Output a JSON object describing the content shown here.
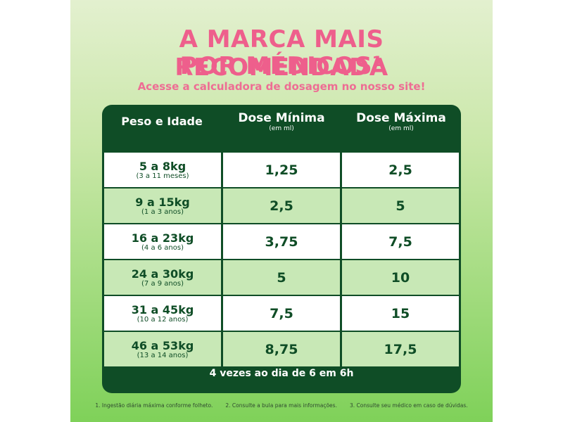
{
  "title_line1": "A MARCA MAIS RECOMENDADA",
  "title_line2": "POR MÉDICOS¹",
  "subtitle": "Acesse a calculadora de dosagem no nosso site!",
  "table": {
    "header": {
      "age": "Peso e Idade",
      "min": "Dose Mínima",
      "max": "Dose Máxima",
      "unit": "(em ml)"
    },
    "rows": [
      {
        "weight": "5 a 8kg",
        "age": "(3 a 11 meses)",
        "min": "1,25",
        "max": "2,5"
      },
      {
        "weight": "9 a 15kg",
        "age": "(1 a 3 anos)",
        "min": "2,5",
        "max": "5"
      },
      {
        "weight": "16 a 23kg",
        "age": "(4 a 6 anos)",
        "min": "3,75",
        "max": "7,5"
      },
      {
        "weight": "24 a 30kg",
        "age": "(7 a 9 anos)",
        "min": "5",
        "max": "10"
      },
      {
        "weight": "31 a 45kg",
        "age": "(10 a 12 anos)",
        "min": "7,5",
        "max": "15"
      },
      {
        "weight": "46 a 53kg",
        "age": "(13 a 14 anos)",
        "min": "8,75",
        "max": "17,5"
      }
    ],
    "frequency": "4 vezes ao dia de 6 em 6h"
  },
  "footnotes": [
    "1. Ingestão diária máxima conforme folheto.",
    "2. Consulte a bula para mais informações.",
    "3. Consulte seu médico em caso de dúvidas."
  ]
}
